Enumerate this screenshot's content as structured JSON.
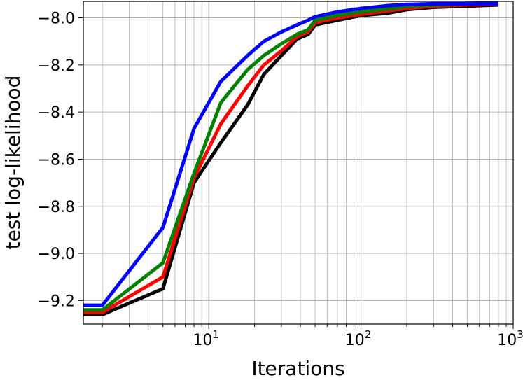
{
  "chart_data": {
    "type": "line",
    "xlabel": "Iterations",
    "ylabel": "test log-likelihood",
    "x_scale": "log",
    "xlim": [
      1.5,
      1000
    ],
    "ylim": [
      -9.3,
      -7.93
    ],
    "grid": true,
    "x_ticks": [
      {
        "value": 10,
        "base": "10",
        "exp": "1"
      },
      {
        "value": 100,
        "base": "10",
        "exp": "2"
      },
      {
        "value": 1000,
        "base": "10",
        "exp": "3"
      }
    ],
    "y_ticks": [
      {
        "value": -8.0,
        "label": "−8.0"
      },
      {
        "value": -8.2,
        "label": "−8.2"
      },
      {
        "value": -8.4,
        "label": "−8.4"
      },
      {
        "value": -8.6,
        "label": "−8.6"
      },
      {
        "value": -8.8,
        "label": "−8.8"
      },
      {
        "value": -9.0,
        "label": "−9.0"
      },
      {
        "value": -9.2,
        "label": "−9.2"
      }
    ],
    "series": [
      {
        "color": "#000000",
        "x": [
          1.5,
          2,
          5,
          8,
          12,
          18,
          23,
          30,
          38,
          45,
          50,
          70,
          100,
          150,
          200,
          300,
          500,
          800
        ],
        "y": [
          -9.26,
          -9.26,
          -9.15,
          -8.7,
          -8.53,
          -8.37,
          -8.24,
          -8.16,
          -8.09,
          -8.07,
          -8.03,
          -8.01,
          -7.99,
          -7.98,
          -7.965,
          -7.955,
          -7.95,
          -7.945
        ]
      },
      {
        "color": "#ff0000",
        "x": [
          1.5,
          2,
          5,
          8,
          12,
          18,
          23,
          30,
          38,
          45,
          50,
          70,
          100,
          150,
          200,
          300,
          500,
          800
        ],
        "y": [
          -9.25,
          -9.25,
          -9.1,
          -8.68,
          -8.45,
          -8.29,
          -8.2,
          -8.14,
          -8.08,
          -8.06,
          -8.02,
          -8.0,
          -7.985,
          -7.97,
          -7.96,
          -7.95,
          -7.945,
          -7.94
        ]
      },
      {
        "color": "#008000",
        "x": [
          1.5,
          2,
          5,
          8,
          12,
          18,
          23,
          30,
          38,
          45,
          50,
          70,
          100,
          150,
          200,
          300,
          500,
          800
        ],
        "y": [
          -9.24,
          -9.24,
          -9.04,
          -8.66,
          -8.36,
          -8.22,
          -8.16,
          -8.11,
          -8.07,
          -8.05,
          -8.01,
          -7.99,
          -7.975,
          -7.962,
          -7.952,
          -7.945,
          -7.94,
          -7.935
        ]
      },
      {
        "color": "#0000ff",
        "x": [
          1.5,
          2,
          5,
          8,
          12,
          18,
          23,
          30,
          38,
          45,
          50,
          70,
          100,
          150,
          200,
          300,
          500,
          800
        ],
        "y": [
          -9.22,
          -9.22,
          -8.89,
          -8.47,
          -8.27,
          -8.16,
          -8.1,
          -8.06,
          -8.03,
          -8.01,
          -7.995,
          -7.975,
          -7.96,
          -7.948,
          -7.943,
          -7.94,
          -7.94,
          -7.94
        ]
      }
    ]
  }
}
